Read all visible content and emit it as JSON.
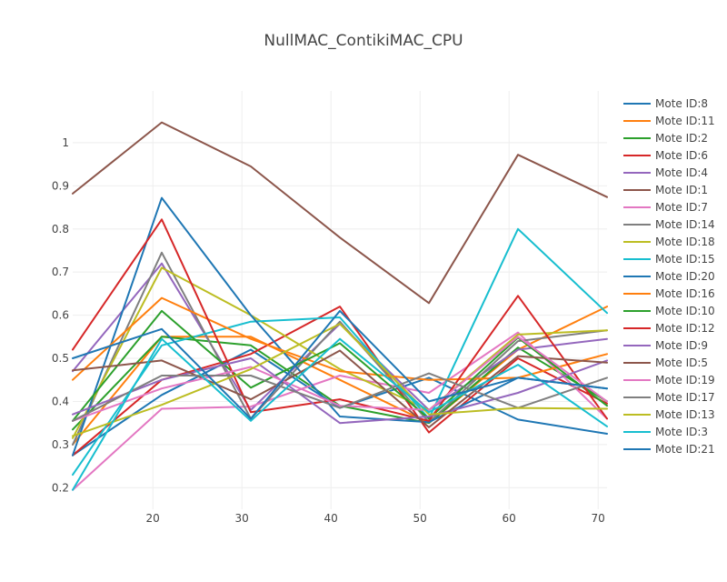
{
  "chart_data": {
    "type": "line",
    "title": "NullMAC_ContikiMAC_CPU",
    "xlabel": "",
    "ylabel": "",
    "xlim": [
      11,
      71
    ],
    "ylim": [
      0.15,
      1.12
    ],
    "xticks": [
      20,
      30,
      40,
      50,
      60,
      70
    ],
    "yticks": [
      0.2,
      0.3,
      0.4,
      0.5,
      0.6,
      0.7,
      0.8,
      0.9,
      1
    ],
    "grid": true,
    "legend": "right",
    "x": [
      11,
      21,
      31,
      41,
      51,
      61,
      71
    ],
    "series": [
      {
        "name": "Mote ID:8",
        "color": "#1f77b4",
        "points": [
          [
            11,
            0.275
          ],
          [
            21,
            0.415
          ],
          [
            31,
            0.52
          ],
          [
            41,
            0.385
          ],
          [
            51,
            0.455
          ],
          [
            61,
            0.358
          ],
          [
            71,
            0.325
          ]
        ]
      },
      {
        "name": "Mote ID:11",
        "color": "#ff7f0e",
        "points": [
          [
            11,
            0.3
          ],
          [
            21,
            0.55
          ],
          [
            31,
            0.55
          ],
          [
            41,
            0.45
          ],
          [
            51,
            0.35
          ],
          [
            61,
            0.52
          ],
          [
            71,
            0.62
          ]
        ]
      },
      {
        "name": "Mote ID:2",
        "color": "#2ca02c",
        "points": [
          [
            11,
            0.335
          ],
          [
            21,
            0.55
          ],
          [
            31,
            0.53
          ],
          [
            41,
            0.39
          ],
          [
            51,
            0.35
          ],
          [
            61,
            0.525
          ],
          [
            71,
            0.4
          ]
        ]
      },
      {
        "name": "Mote ID:6",
        "color": "#d62728",
        "points": [
          [
            11,
            0.275
          ],
          [
            21,
            0.45
          ],
          [
            31,
            0.51
          ],
          [
            41,
            0.62
          ],
          [
            51,
            0.328
          ],
          [
            61,
            0.5
          ],
          [
            71,
            0.395
          ]
        ]
      },
      {
        "name": "Mote ID:4",
        "color": "#9467bd",
        "points": [
          [
            11,
            0.47
          ],
          [
            21,
            0.72
          ],
          [
            31,
            0.38
          ],
          [
            41,
            0.58
          ],
          [
            51,
            0.38
          ],
          [
            61,
            0.52
          ],
          [
            71,
            0.545
          ]
        ]
      },
      {
        "name": "Mote ID:1",
        "color": "#8c564b",
        "points": [
          [
            11,
            0.882
          ],
          [
            21,
            1.047
          ],
          [
            31,
            0.945
          ],
          [
            41,
            0.78
          ],
          [
            51,
            0.628
          ],
          [
            61,
            0.972
          ],
          [
            71,
            0.874
          ]
        ]
      },
      {
        "name": "Mote ID:7",
        "color": "#e377c2",
        "points": [
          [
            11,
            0.195
          ],
          [
            21,
            0.383
          ],
          [
            31,
            0.388
          ],
          [
            41,
            0.46
          ],
          [
            51,
            0.42
          ],
          [
            61,
            0.56
          ],
          [
            71,
            0.36
          ]
        ]
      },
      {
        "name": "Mote ID:14",
        "color": "#7f7f7f",
        "points": [
          [
            11,
            0.3
          ],
          [
            21,
            0.745
          ],
          [
            31,
            0.36
          ],
          [
            41,
            0.585
          ],
          [
            51,
            0.352
          ],
          [
            61,
            0.54
          ],
          [
            71,
            0.565
          ]
        ]
      },
      {
        "name": "Mote ID:18",
        "color": "#bcbd22",
        "points": [
          [
            11,
            0.315
          ],
          [
            21,
            0.71
          ],
          [
            31,
            0.6
          ],
          [
            41,
            0.475
          ],
          [
            51,
            0.38
          ],
          [
            61,
            0.555
          ],
          [
            71,
            0.565
          ]
        ]
      },
      {
        "name": "Mote ID:15",
        "color": "#17becf",
        "points": [
          [
            11,
            0.23
          ],
          [
            21,
            0.53
          ],
          [
            31,
            0.585
          ],
          [
            41,
            0.595
          ],
          [
            51,
            0.36
          ],
          [
            61,
            0.8
          ],
          [
            71,
            0.605
          ]
        ]
      },
      {
        "name": "Mote ID:20",
        "color": "#1f77b4",
        "points": [
          [
            11,
            0.275
          ],
          [
            21,
            0.872
          ],
          [
            31,
            0.6
          ],
          [
            41,
            0.365
          ],
          [
            51,
            0.352
          ],
          [
            61,
            0.455
          ],
          [
            71,
            0.43
          ]
        ]
      },
      {
        "name": "Mote ID:16",
        "color": "#ff7f0e",
        "points": [
          [
            11,
            0.45
          ],
          [
            21,
            0.64
          ],
          [
            31,
            0.545
          ],
          [
            41,
            0.47
          ],
          [
            51,
            0.45
          ],
          [
            61,
            0.455
          ],
          [
            71,
            0.51
          ]
        ]
      },
      {
        "name": "Mote ID:10",
        "color": "#2ca02c",
        "points": [
          [
            11,
            0.355
          ],
          [
            21,
            0.61
          ],
          [
            31,
            0.432
          ],
          [
            41,
            0.535
          ],
          [
            51,
            0.36
          ],
          [
            61,
            0.548
          ],
          [
            71,
            0.39
          ]
        ]
      },
      {
        "name": "Mote ID:12",
        "color": "#d62728",
        "points": [
          [
            11,
            0.52
          ],
          [
            21,
            0.822
          ],
          [
            31,
            0.375
          ],
          [
            41,
            0.405
          ],
          [
            51,
            0.355
          ],
          [
            61,
            0.645
          ],
          [
            71,
            0.36
          ]
        ]
      },
      {
        "name": "Mote ID:9",
        "color": "#9467bd",
        "points": [
          [
            11,
            0.37
          ],
          [
            21,
            0.45
          ],
          [
            31,
            0.5
          ],
          [
            41,
            0.35
          ],
          [
            51,
            0.365
          ],
          [
            61,
            0.42
          ],
          [
            71,
            0.495
          ]
        ]
      },
      {
        "name": "Mote ID:5",
        "color": "#8c564b",
        "points": [
          [
            11,
            0.472
          ],
          [
            21,
            0.495
          ],
          [
            31,
            0.405
          ],
          [
            41,
            0.518
          ],
          [
            51,
            0.34
          ],
          [
            61,
            0.505
          ],
          [
            71,
            0.49
          ]
        ]
      },
      {
        "name": "Mote ID:19",
        "color": "#e377c2",
        "points": [
          [
            11,
            0.355
          ],
          [
            21,
            0.43
          ],
          [
            31,
            0.48
          ],
          [
            41,
            0.39
          ],
          [
            51,
            0.38
          ],
          [
            61,
            0.55
          ],
          [
            71,
            0.4
          ]
        ]
      },
      {
        "name": "Mote ID:17",
        "color": "#7f7f7f",
        "points": [
          [
            11,
            0.355
          ],
          [
            21,
            0.46
          ],
          [
            31,
            0.46
          ],
          [
            41,
            0.385
          ],
          [
            51,
            0.465
          ],
          [
            61,
            0.385
          ],
          [
            71,
            0.455
          ]
        ]
      },
      {
        "name": "Mote ID:13",
        "color": "#bcbd22",
        "points": [
          [
            11,
            0.32
          ],
          [
            21,
            0.392
          ],
          [
            31,
            0.475
          ],
          [
            41,
            0.58
          ],
          [
            51,
            0.37
          ],
          [
            61,
            0.385
          ],
          [
            71,
            0.383
          ]
        ]
      },
      {
        "name": "Mote ID:3",
        "color": "#17becf",
        "points": [
          [
            11,
            0.195
          ],
          [
            21,
            0.545
          ],
          [
            31,
            0.355
          ],
          [
            41,
            0.545
          ],
          [
            51,
            0.375
          ],
          [
            61,
            0.485
          ],
          [
            71,
            0.342
          ]
        ]
      },
      {
        "name": "Mote ID:21",
        "color": "#1f77b4",
        "points": [
          [
            11,
            0.5
          ],
          [
            21,
            0.568
          ],
          [
            31,
            0.36
          ],
          [
            41,
            0.61
          ],
          [
            51,
            0.4
          ],
          [
            61,
            0.455
          ],
          [
            71,
            0.43
          ]
        ]
      }
    ]
  }
}
